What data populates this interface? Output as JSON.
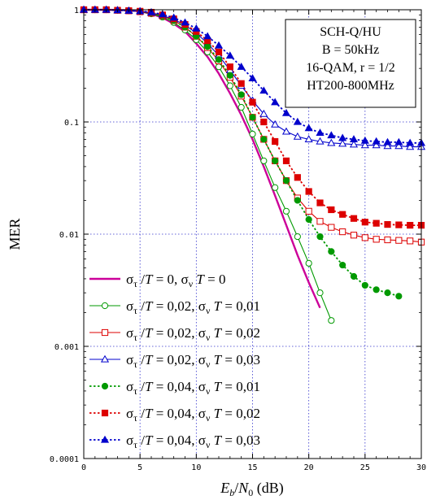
{
  "chart_data": {
    "type": "line",
    "y_scale": "log",
    "xlim": [
      0,
      30
    ],
    "ylim": [
      0.0001,
      1
    ],
    "x_ticks": [
      "0",
      "5",
      "10",
      "15",
      "20",
      "25",
      "30"
    ],
    "y_ticks": [
      "0.0001",
      "0.001",
      "0.01",
      "0.1",
      "1"
    ],
    "x_tick_values": [
      0,
      5,
      10,
      15,
      20,
      25,
      30
    ],
    "y_tick_values": [
      0.0001,
      0.001,
      0.01,
      0.1,
      1
    ],
    "grid": true,
    "ylabel": "MER",
    "xlabel": {
      "e": "E",
      "b": "b",
      "slash": "/",
      "n": "N",
      "zero": "0",
      "unit": " (dB)"
    },
    "info_box": [
      "SCH-Q/HU",
      "B = 50kHz",
      "16-QAM, r = 1/2",
      "HT200-800MHz"
    ],
    "legend_position": "bottom-left",
    "series": [
      {
        "legend": {
          "sigma": "σ",
          "sub1": "τ",
          "mid": " /T = 0, σ",
          "sub2": "ν",
          "end": " T = 0"
        },
        "color": "#cc0099",
        "dashed": false,
        "marker": "none",
        "filled": false,
        "x": [
          0,
          2,
          4,
          5,
          6,
          7,
          8,
          9,
          10,
          11,
          12,
          13,
          14,
          15,
          16,
          17,
          18,
          19,
          20,
          21
        ],
        "y": [
          1,
          1,
          0.99,
          0.97,
          0.92,
          0.85,
          0.75,
          0.64,
          0.5,
          0.38,
          0.27,
          0.18,
          0.115,
          0.07,
          0.04,
          0.022,
          0.012,
          0.0065,
          0.0037,
          0.0022
        ]
      },
      {
        "legend": {
          "sigma": "σ",
          "sub1": "τ",
          "mid": " /T = 0,02, σ",
          "sub2": "ν",
          "end": " T = 0,01"
        },
        "color": "#009900",
        "dashed": false,
        "marker": "circle",
        "filled": false,
        "x": [
          0,
          1,
          2,
          3,
          4,
          5,
          6,
          7,
          8,
          9,
          10,
          11,
          12,
          13,
          14,
          15,
          16,
          17,
          18,
          19,
          20,
          21,
          22
        ],
        "y": [
          1,
          1,
          1,
          0.99,
          0.98,
          0.96,
          0.92,
          0.86,
          0.77,
          0.66,
          0.54,
          0.42,
          0.31,
          0.21,
          0.135,
          0.078,
          0.045,
          0.026,
          0.016,
          0.0095,
          0.0055,
          0.003,
          0.0017
        ]
      },
      {
        "legend": {
          "sigma": "σ",
          "sub1": "τ",
          "mid": " /T = 0,02, σ",
          "sub2": "ν",
          "end": " T = 0,02"
        },
        "color": "#dd0000",
        "dashed": false,
        "marker": "square",
        "filled": false,
        "x": [
          0,
          1,
          2,
          3,
          4,
          5,
          6,
          7,
          8,
          9,
          10,
          11,
          12,
          13,
          14,
          15,
          16,
          17,
          18,
          19,
          20,
          21,
          22,
          23,
          24,
          25,
          26,
          27,
          28,
          29,
          30
        ],
        "y": [
          1,
          1,
          1,
          0.99,
          0.98,
          0.96,
          0.93,
          0.88,
          0.8,
          0.7,
          0.58,
          0.46,
          0.35,
          0.25,
          0.17,
          0.11,
          0.07,
          0.045,
          0.03,
          0.021,
          0.016,
          0.013,
          0.0115,
          0.0105,
          0.0098,
          0.0093,
          0.009,
          0.0089,
          0.0088,
          0.0087,
          0.0085
        ]
      },
      {
        "legend": {
          "sigma": "σ",
          "sub1": "τ",
          "mid": " /T = 0,02, σ",
          "sub2": "ν",
          "end": " T = 0,03"
        },
        "color": "#0000cc",
        "dashed": false,
        "marker": "triangle",
        "filled": false,
        "x": [
          0,
          1,
          2,
          3,
          4,
          5,
          6,
          7,
          8,
          9,
          10,
          11,
          12,
          13,
          14,
          15,
          16,
          17,
          18,
          19,
          20,
          21,
          22,
          23,
          24,
          25,
          26,
          27,
          28,
          29,
          30
        ],
        "y": [
          1,
          1,
          1,
          0.99,
          0.98,
          0.97,
          0.94,
          0.89,
          0.82,
          0.73,
          0.62,
          0.5,
          0.39,
          0.29,
          0.21,
          0.155,
          0.118,
          0.095,
          0.082,
          0.074,
          0.07,
          0.067,
          0.065,
          0.064,
          0.063,
          0.062,
          0.062,
          0.061,
          0.061,
          0.06,
          0.06
        ]
      },
      {
        "legend": {
          "sigma": "σ",
          "sub1": "τ",
          "mid": " /T = 0,04, σ",
          "sub2": "ν",
          "end": " T = 0,01"
        },
        "color": "#009900",
        "dashed": true,
        "marker": "circle",
        "filled": true,
        "x": [
          0,
          1,
          2,
          3,
          4,
          5,
          6,
          7,
          8,
          9,
          10,
          11,
          12,
          13,
          14,
          15,
          16,
          17,
          18,
          19,
          20,
          21,
          22,
          23,
          24,
          25,
          26,
          27,
          28
        ],
        "y": [
          1,
          1,
          1,
          0.99,
          0.98,
          0.97,
          0.94,
          0.88,
          0.8,
          0.7,
          0.58,
          0.47,
          0.36,
          0.26,
          0.175,
          0.11,
          0.07,
          0.045,
          0.03,
          0.02,
          0.0135,
          0.0095,
          0.007,
          0.0053,
          0.0042,
          0.0035,
          0.0032,
          0.003,
          0.0028
        ]
      },
      {
        "legend": {
          "sigma": "σ",
          "sub1": "τ",
          "mid": " /T = 0,04, σ",
          "sub2": "ν",
          "end": " T = 0,02"
        },
        "color": "#dd0000",
        "dashed": true,
        "marker": "square",
        "filled": true,
        "x": [
          0,
          1,
          2,
          3,
          4,
          5,
          6,
          7,
          8,
          9,
          10,
          11,
          12,
          13,
          14,
          15,
          16,
          17,
          18,
          19,
          20,
          21,
          22,
          23,
          24,
          25,
          26,
          27,
          28,
          29,
          30
        ],
        "y": [
          1,
          1,
          1,
          0.99,
          0.98,
          0.97,
          0.95,
          0.9,
          0.83,
          0.74,
          0.64,
          0.53,
          0.42,
          0.31,
          0.22,
          0.15,
          0.1,
          0.067,
          0.045,
          0.032,
          0.024,
          0.019,
          0.0165,
          0.015,
          0.0138,
          0.0128,
          0.0125,
          0.0122,
          0.0121,
          0.012,
          0.012
        ]
      },
      {
        "legend": {
          "sigma": "σ",
          "sub1": "τ",
          "mid": " /T = 0,04, σ",
          "sub2": "ν",
          "end": " T = 0,03"
        },
        "color": "#0000cc",
        "dashed": true,
        "marker": "triangle",
        "filled": true,
        "x": [
          0,
          1,
          2,
          3,
          4,
          5,
          6,
          7,
          8,
          9,
          10,
          11,
          12,
          13,
          14,
          15,
          16,
          17,
          18,
          19,
          20,
          21,
          22,
          23,
          24,
          25,
          26,
          27,
          28,
          29,
          30
        ],
        "y": [
          1,
          1,
          1,
          0.99,
          0.98,
          0.97,
          0.95,
          0.91,
          0.85,
          0.77,
          0.68,
          0.58,
          0.48,
          0.39,
          0.31,
          0.245,
          0.19,
          0.15,
          0.12,
          0.1,
          0.088,
          0.08,
          0.076,
          0.072,
          0.07,
          0.068,
          0.067,
          0.066,
          0.066,
          0.065,
          0.065
        ]
      }
    ]
  }
}
